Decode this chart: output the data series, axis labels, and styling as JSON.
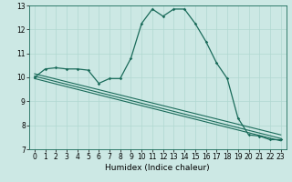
{
  "title": "",
  "xlabel": "Humidex (Indice chaleur)",
  "bg_color": "#cce8e4",
  "grid_color": "#b0d8d0",
  "line_color": "#1a6b5a",
  "xlim": [
    -0.5,
    23.5
  ],
  "ylim": [
    7,
    13
  ],
  "xticks": [
    0,
    1,
    2,
    3,
    4,
    5,
    6,
    7,
    8,
    9,
    10,
    11,
    12,
    13,
    14,
    15,
    16,
    17,
    18,
    19,
    20,
    21,
    22,
    23
  ],
  "yticks": [
    7,
    8,
    9,
    10,
    11,
    12,
    13
  ],
  "curve1_x": [
    0,
    1,
    2,
    3,
    4,
    5,
    6,
    7,
    8,
    9,
    10,
    11,
    12,
    13,
    14,
    15,
    16,
    17,
    18,
    19,
    20,
    21,
    22,
    23
  ],
  "curve1_y": [
    10.0,
    10.35,
    10.4,
    10.35,
    10.35,
    10.3,
    9.75,
    9.95,
    9.95,
    10.8,
    12.25,
    12.85,
    12.55,
    12.85,
    12.85,
    12.25,
    11.5,
    10.6,
    9.95,
    8.3,
    7.6,
    7.55,
    7.4,
    7.4
  ],
  "line2_x": [
    0,
    23
  ],
  "line2_y": [
    10.05,
    7.45
  ],
  "line3_x": [
    0,
    23
  ],
  "line3_y": [
    10.15,
    7.6
  ],
  "line4_x": [
    0,
    23
  ],
  "line4_y": [
    9.95,
    7.35
  ],
  "tick_fontsize": 5.5,
  "xlabel_fontsize": 6.5
}
